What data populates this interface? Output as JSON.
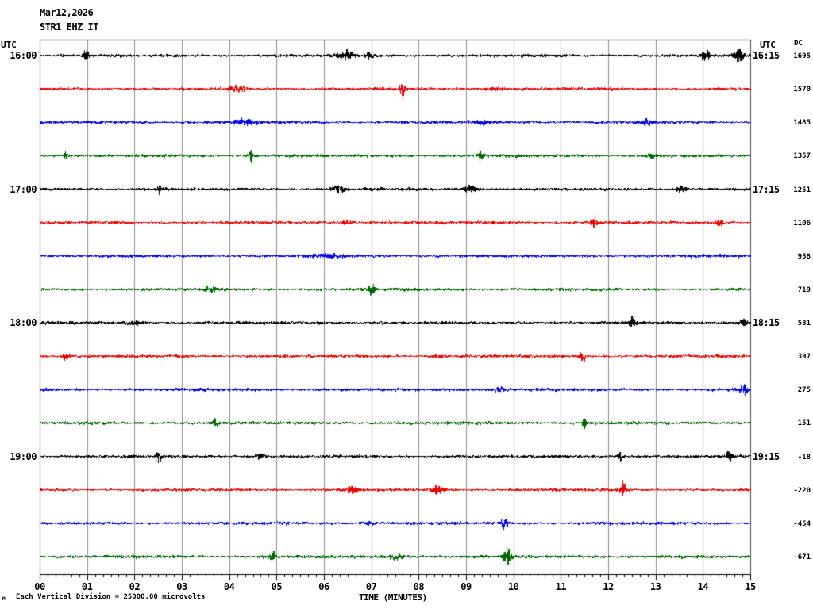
{
  "header": {
    "date": "Mar12,2026",
    "station": "STR1 EHZ IT",
    "left_axis_unit": "UTC",
    "right_axis_unit": "UTC",
    "dc_header": "DC"
  },
  "x_axis": {
    "title": "TIME (MINUTES)",
    "tick_labels": [
      "00",
      "01",
      "02",
      "03",
      "04",
      "05",
      "06",
      "07",
      "08",
      "09",
      "10",
      "11",
      "12",
      "13",
      "14",
      "15"
    ],
    "minor_ticks_per_minute": 6
  },
  "footer": {
    "scale_note": "Each Vertical Division = 25000.00 microvolts",
    "corner_mark": "M"
  },
  "colors": {
    "black": "#000000",
    "red": "#ee0000",
    "blue": "#0000ee",
    "green": "#006600",
    "grid": "#909090",
    "border": "#505050",
    "axis": "#000000",
    "background": "#ffffff"
  },
  "chart_data": {
    "type": "line",
    "title": "STR1 EHZ IT helicorder seismogram",
    "x_range_minutes": [
      0,
      15
    ],
    "vertical_division_microvolts": 25000.0,
    "rows": [
      {
        "color": "black",
        "left_label": "16:00",
        "right_label": "16:15",
        "dc": "1695",
        "seed": 11,
        "bursts": [
          {
            "m": 0.95,
            "a": 5,
            "w": 0.06
          },
          {
            "m": 6.45,
            "a": 3,
            "w": 0.15
          },
          {
            "m": 6.95,
            "a": 3.5,
            "w": 0.06
          },
          {
            "m": 14.05,
            "a": 3.5,
            "w": 0.08
          },
          {
            "m": 14.75,
            "a": 4.5,
            "w": 0.1
          }
        ]
      },
      {
        "color": "red",
        "left_label": null,
        "right_label": null,
        "dc": "1570",
        "seed": 22,
        "bursts": [
          {
            "m": 4.2,
            "a": 1.5,
            "w": 0.2
          },
          {
            "m": 7.65,
            "a": 6,
            "w": 0.05
          },
          {
            "m": 9.6,
            "a": 1.2,
            "w": 0.3
          }
        ]
      },
      {
        "color": "blue",
        "left_label": null,
        "right_label": null,
        "dc": "1485",
        "seed": 33,
        "bursts": [
          {
            "m": 4.35,
            "a": 1.5,
            "w": 0.3
          },
          {
            "m": 9.3,
            "a": 1.2,
            "w": 0.2
          },
          {
            "m": 12.8,
            "a": 1.5,
            "w": 0.15
          }
        ]
      },
      {
        "color": "green",
        "left_label": null,
        "right_label": null,
        "dc": "1357",
        "seed": 44,
        "bursts": [
          {
            "m": 0.55,
            "a": 5,
            "w": 0.05
          },
          {
            "m": 4.45,
            "a": 3.5,
            "w": 0.05
          },
          {
            "m": 9.3,
            "a": 3,
            "w": 0.06
          },
          {
            "m": 12.9,
            "a": 2,
            "w": 0.1
          }
        ]
      },
      {
        "color": "black",
        "left_label": "17:00",
        "right_label": "17:15",
        "dc": "1251",
        "seed": 55,
        "bursts": [
          {
            "m": 2.5,
            "a": 3.5,
            "w": 0.05
          },
          {
            "m": 6.3,
            "a": 2.5,
            "w": 0.12
          },
          {
            "m": 9.1,
            "a": 5.5,
            "w": 0.12
          },
          {
            "m": 13.55,
            "a": 4.5,
            "w": 0.08
          }
        ]
      },
      {
        "color": "red",
        "left_label": null,
        "right_label": null,
        "dc": "1106",
        "seed": 66,
        "bursts": [
          {
            "m": 6.5,
            "a": 2,
            "w": 0.1
          },
          {
            "m": 11.7,
            "a": 4.5,
            "w": 0.05
          },
          {
            "m": 14.35,
            "a": 2.5,
            "w": 0.08
          }
        ]
      },
      {
        "color": "blue",
        "left_label": null,
        "right_label": null,
        "dc": "958",
        "seed": 77,
        "bursts": [
          {
            "m": 6.0,
            "a": 1,
            "w": 0.3
          }
        ]
      },
      {
        "color": "green",
        "left_label": null,
        "right_label": null,
        "dc": "719",
        "seed": 88,
        "bursts": [
          {
            "m": 3.6,
            "a": 1.5,
            "w": 0.15
          },
          {
            "m": 7.0,
            "a": 3.5,
            "w": 0.06
          }
        ]
      },
      {
        "color": "black",
        "left_label": "18:00",
        "right_label": "18:15",
        "dc": "581",
        "seed": 99,
        "bursts": [
          {
            "m": 2.0,
            "a": 1.5,
            "w": 0.2
          },
          {
            "m": 12.5,
            "a": 4,
            "w": 0.06
          },
          {
            "m": 14.85,
            "a": 5,
            "w": 0.08
          }
        ]
      },
      {
        "color": "red",
        "left_label": null,
        "right_label": null,
        "dc": "397",
        "seed": 110,
        "bursts": [
          {
            "m": 0.55,
            "a": 4.5,
            "w": 0.06
          },
          {
            "m": 8.4,
            "a": 1.5,
            "w": 0.15
          },
          {
            "m": 11.45,
            "a": 4,
            "w": 0.07
          }
        ]
      },
      {
        "color": "blue",
        "left_label": null,
        "right_label": null,
        "dc": "275",
        "seed": 121,
        "bursts": [
          {
            "m": 9.7,
            "a": 1.5,
            "w": 0.2
          },
          {
            "m": 14.85,
            "a": 3.5,
            "w": 0.07
          }
        ]
      },
      {
        "color": "green",
        "left_label": null,
        "right_label": null,
        "dc": "151",
        "seed": 132,
        "bursts": [
          {
            "m": 3.7,
            "a": 3.5,
            "w": 0.06
          },
          {
            "m": 11.5,
            "a": 3.5,
            "w": 0.06
          }
        ]
      },
      {
        "color": "black",
        "left_label": "19:00",
        "right_label": "19:15",
        "dc": "-18",
        "seed": 143,
        "bursts": [
          {
            "m": 2.5,
            "a": 3,
            "w": 0.06
          },
          {
            "m": 4.65,
            "a": 2.5,
            "w": 0.1
          },
          {
            "m": 12.25,
            "a": 4.5,
            "w": 0.06
          },
          {
            "m": 14.55,
            "a": 2.5,
            "w": 0.08
          }
        ]
      },
      {
        "color": "red",
        "left_label": null,
        "right_label": null,
        "dc": "-220",
        "seed": 154,
        "bursts": [
          {
            "m": 6.6,
            "a": 2.5,
            "w": 0.1
          },
          {
            "m": 8.4,
            "a": 3,
            "w": 0.12
          },
          {
            "m": 12.3,
            "a": 5.5,
            "w": 0.06
          }
        ]
      },
      {
        "color": "blue",
        "left_label": null,
        "right_label": null,
        "dc": "-454",
        "seed": 165,
        "bursts": [
          {
            "m": 6.9,
            "a": 1.5,
            "w": 0.15
          },
          {
            "m": 9.8,
            "a": 6,
            "w": 0.06
          }
        ]
      },
      {
        "color": "green",
        "left_label": null,
        "right_label": null,
        "dc": "-671",
        "seed": 176,
        "bursts": [
          {
            "m": 4.9,
            "a": 4,
            "w": 0.06
          },
          {
            "m": 7.5,
            "a": 1.5,
            "w": 0.2
          },
          {
            "m": 9.85,
            "a": 6,
            "w": 0.08
          }
        ]
      }
    ]
  }
}
